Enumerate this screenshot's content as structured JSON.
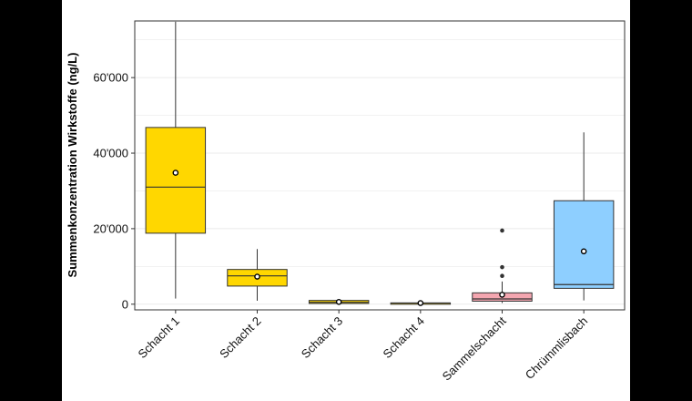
{
  "chart_data": {
    "type": "box",
    "title": "",
    "xlabel": "",
    "ylabel": "Summenkonzentration Wirkstoffe (ng/L)",
    "ylim": [
      -1500,
      75000
    ],
    "y_ticks": [
      0,
      20000,
      40000,
      60000
    ],
    "y_tick_labels": [
      "0",
      "20'000",
      "40'000",
      "60'000"
    ],
    "grid": true,
    "legend": "none",
    "categories": [
      "Schacht 1",
      "Schacht 2",
      "Schacht 3",
      "Schacht 4",
      "Sammelschacht",
      "Chrümmlisbach"
    ],
    "boxes": [
      {
        "whisker_low": 1500,
        "q1": 18800,
        "median": 31000,
        "q3": 46800,
        "whisker_high": 74800,
        "mean": 34800,
        "outliers": [],
        "color": "#FFD700"
      },
      {
        "whisker_low": 900,
        "q1": 4800,
        "median": 7500,
        "q3": 9200,
        "whisker_high": 14600,
        "mean": 7300,
        "outliers": [],
        "color": "#FFD700"
      },
      {
        "whisker_low": 50,
        "q1": 200,
        "median": 500,
        "q3": 1000,
        "whisker_high": 1000,
        "mean": 600,
        "outliers": [],
        "color": "#FFD700"
      },
      {
        "whisker_low": 150,
        "q1": 200,
        "median": 300,
        "q3": 350,
        "whisker_high": 400,
        "mean": 300,
        "outliers": [],
        "color": "#FFD700"
      },
      {
        "whisker_low": 300,
        "q1": 800,
        "median": 1400,
        "q3": 3000,
        "whisker_high": 6000,
        "mean": 2500,
        "outliers": [
          7500,
          9800,
          19500
        ],
        "color": "#F4A6B0"
      },
      {
        "whisker_low": 1000,
        "q1": 4200,
        "median": 5200,
        "q3": 27400,
        "whisker_high": 45500,
        "mean": 14000,
        "outliers": [],
        "color": "#8ECFFF"
      }
    ]
  }
}
